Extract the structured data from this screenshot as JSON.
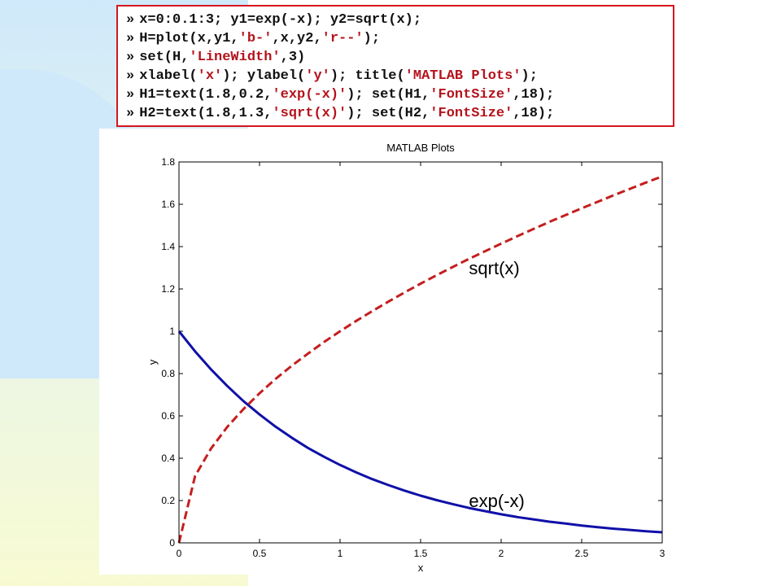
{
  "code": {
    "lines": [
      {
        "prompt": "»",
        "parts": [
          {
            "t": "x=0:0.1:3; y1=exp(-x); y2=sqrt(x);",
            "s": false
          }
        ]
      },
      {
        "prompt": "»",
        "parts": [
          {
            "t": "H=plot(x,y1,",
            "s": false
          },
          {
            "t": "'b-'",
            "s": true
          },
          {
            "t": ",x,y2,",
            "s": false
          },
          {
            "t": "'r--'",
            "s": true
          },
          {
            "t": ");",
            "s": false
          }
        ]
      },
      {
        "prompt": "»",
        "parts": [
          {
            "t": "set(H,",
            "s": false
          },
          {
            "t": "'LineWidth'",
            "s": true
          },
          {
            "t": ",3)",
            "s": false
          }
        ]
      },
      {
        "prompt": "»",
        "parts": [
          {
            "t": "xlabel(",
            "s": false
          },
          {
            "t": "'x'",
            "s": true
          },
          {
            "t": "); ylabel(",
            "s": false
          },
          {
            "t": "'y'",
            "s": true
          },
          {
            "t": "); title(",
            "s": false
          },
          {
            "t": "'MATLAB Plots'",
            "s": true
          },
          {
            "t": ");",
            "s": false
          }
        ]
      },
      {
        "prompt": "»",
        "parts": [
          {
            "t": "H1=text(1.8,0.2,",
            "s": false
          },
          {
            "t": "'exp(-x)'",
            "s": true
          },
          {
            "t": "); set(H1,",
            "s": false
          },
          {
            "t": "'FontSize'",
            "s": true
          },
          {
            "t": ",18);",
            "s": false
          }
        ]
      },
      {
        "prompt": "»",
        "parts": [
          {
            "t": "H2=text(1.8,1.3,",
            "s": false
          },
          {
            "t": "'sqrt(x)'",
            "s": true
          },
          {
            "t": "); set(H2,",
            "s": false
          },
          {
            "t": "'FontSize'",
            "s": true
          },
          {
            "t": ",18);",
            "s": false
          }
        ]
      }
    ]
  },
  "chart_data": {
    "type": "line",
    "title": "MATLAB Plots",
    "xlabel": "x",
    "ylabel": "y",
    "xlim": [
      0,
      3
    ],
    "ylim": [
      0,
      1.8
    ],
    "x_ticks": [
      "0",
      "0.5",
      "1",
      "1.5",
      "2",
      "2.5",
      "3"
    ],
    "y_ticks": [
      "0",
      "0.2",
      "0.4",
      "0.6",
      "0.8",
      "1",
      "1.2",
      "1.4",
      "1.6",
      "1.8"
    ],
    "grid": false,
    "x": [
      0,
      0.1,
      0.2,
      0.3,
      0.4,
      0.5,
      0.6,
      0.7,
      0.8,
      0.9,
      1.0,
      1.1,
      1.2,
      1.3,
      1.4,
      1.5,
      1.6,
      1.7,
      1.8,
      1.9,
      2.0,
      2.1,
      2.2,
      2.3,
      2.4,
      2.5,
      2.6,
      2.7,
      2.8,
      2.9,
      3.0
    ],
    "series": [
      {
        "style": "b-",
        "color": "#1010a8",
        "values": [
          1,
          0.905,
          0.819,
          0.741,
          0.67,
          0.607,
          0.549,
          0.497,
          0.449,
          0.407,
          0.368,
          0.333,
          0.301,
          0.273,
          0.247,
          0.223,
          0.202,
          0.183,
          0.165,
          0.15,
          0.135,
          0.122,
          0.111,
          0.1,
          0.091,
          0.082,
          0.074,
          0.067,
          0.061,
          0.055,
          0.05
        ]
      },
      {
        "style": "r--",
        "color": "#c41e1e",
        "values": [
          0,
          0.316,
          0.447,
          0.548,
          0.632,
          0.707,
          0.775,
          0.837,
          0.894,
          0.949,
          1,
          1.049,
          1.095,
          1.14,
          1.183,
          1.225,
          1.265,
          1.304,
          1.342,
          1.378,
          1.414,
          1.449,
          1.483,
          1.517,
          1.549,
          1.581,
          1.612,
          1.643,
          1.673,
          1.703,
          1.732
        ]
      }
    ],
    "annotations": [
      {
        "text": "exp(-x)",
        "x": 1.8,
        "y": 0.2
      },
      {
        "text": "sqrt(x)",
        "x": 1.8,
        "y": 1.3
      }
    ]
  }
}
